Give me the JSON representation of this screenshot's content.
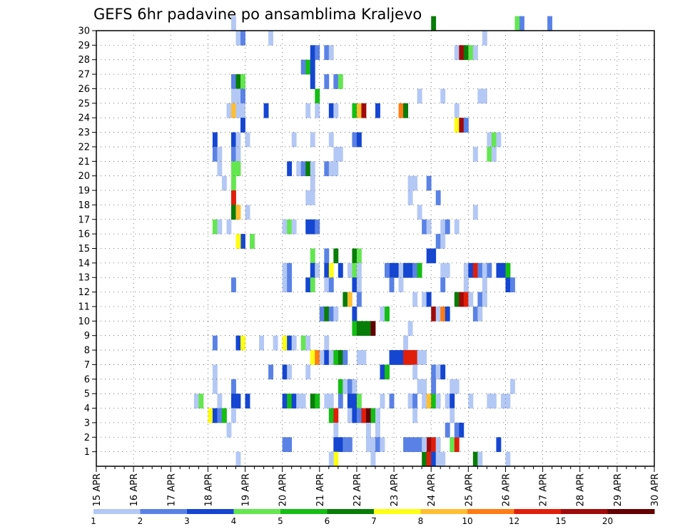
{
  "chart_data": {
    "type": "heatmap",
    "title": "GEFS 6hr padavine po ansamblima Kraljevo",
    "xlabel": "",
    "ylabel": "",
    "x_ticks": [
      "15 APR",
      "16 APR",
      "17 APR",
      "18 APR",
      "19 APR",
      "20 APR",
      "21 APR",
      "22 APR",
      "23 APR",
      "24 APR",
      "25 APR",
      "26 APR",
      "27 APR",
      "28 APR",
      "29 APR",
      "30 APR"
    ],
    "y_ticks": [
      "1",
      "2",
      "3",
      "4",
      "5",
      "6",
      "7",
      "8",
      "9",
      "10",
      "11",
      "12",
      "13",
      "14",
      "15",
      "16",
      "17",
      "18",
      "19",
      "20",
      "21",
      "22",
      "23",
      "24",
      "25",
      "26",
      "27",
      "28",
      "29",
      "30"
    ],
    "xlim": [
      0,
      60
    ],
    "ylim": [
      0,
      30
    ],
    "x_unit": "6-hour step from 15 APR 00Z",
    "y_unit": "ensemble member",
    "grid": true,
    "legend": {
      "placement": "bottom",
      "labels": [
        "1",
        "2",
        "3",
        "4",
        "5",
        "6",
        "7",
        "8",
        "10",
        "12",
        "15",
        "20"
      ],
      "colors": [
        "#b4c8f5",
        "#5a82e6",
        "#1446d2",
        "#64e650",
        "#14be14",
        "#087d08",
        "#ffff14",
        "#ffbe32",
        "#ff7d14",
        "#e11e0a",
        "#a00a0a",
        "#640000"
      ]
    },
    "cells": [
      [
        14.5,
        30,
        1
      ],
      [
        15,
        29,
        1
      ],
      [
        15.5,
        29,
        2
      ],
      [
        18.5,
        29,
        1
      ],
      [
        36,
        30,
        6
      ],
      [
        45,
        30,
        4
      ],
      [
        45.5,
        30,
        2
      ],
      [
        48.5,
        30,
        2
      ],
      [
        14.5,
        26,
        2
      ],
      [
        15,
        26,
        6
      ],
      [
        15.5,
        26,
        4
      ],
      [
        14.5,
        25,
        1
      ],
      [
        15,
        25,
        1
      ],
      [
        15.5,
        25,
        2
      ],
      [
        14,
        24,
        1
      ],
      [
        14.5,
        24,
        8
      ],
      [
        15,
        24,
        1
      ],
      [
        15.5,
        24,
        1
      ],
      [
        18,
        24,
        3
      ],
      [
        15.5,
        23,
        3
      ],
      [
        12.5,
        22,
        3
      ],
      [
        14.5,
        22,
        3
      ],
      [
        15,
        22,
        1
      ],
      [
        16,
        22,
        1
      ],
      [
        12.5,
        21,
        2
      ],
      [
        13,
        21,
        1
      ],
      [
        14.5,
        21,
        2
      ],
      [
        15,
        21,
        1
      ],
      [
        13,
        20,
        1
      ],
      [
        14.5,
        20,
        4
      ],
      [
        15,
        20,
        4
      ],
      [
        13.5,
        19,
        1
      ],
      [
        14.5,
        19,
        4
      ],
      [
        14.5,
        18,
        10
      ],
      [
        14.5,
        17,
        6
      ],
      [
        15,
        17,
        8
      ],
      [
        16,
        17,
        1
      ],
      [
        12.5,
        16,
        4
      ],
      [
        13,
        16,
        1
      ],
      [
        14,
        16,
        1
      ],
      [
        15.5,
        15,
        3
      ],
      [
        15,
        15,
        7
      ],
      [
        16.5,
        15,
        4
      ],
      [
        14.5,
        12,
        2
      ],
      [
        12.5,
        8,
        2
      ],
      [
        12.5,
        6,
        1
      ],
      [
        12.5,
        5,
        1
      ],
      [
        14.5,
        5,
        2
      ],
      [
        10.5,
        4,
        1
      ],
      [
        11,
        4,
        4
      ],
      [
        13,
        4,
        1
      ],
      [
        14.5,
        4,
        3
      ],
      [
        15,
        4,
        3
      ],
      [
        16,
        4,
        3
      ],
      [
        12,
        3,
        7
      ],
      [
        12.5,
        3,
        3
      ],
      [
        13,
        3,
        2
      ],
      [
        13.5,
        3,
        5
      ],
      [
        14.5,
        3,
        1
      ],
      [
        14,
        2,
        1
      ],
      [
        15,
        0,
        1
      ],
      [
        19,
        8,
        1
      ],
      [
        17.5,
        8,
        1
      ],
      [
        15,
        8,
        3
      ],
      [
        15.5,
        8,
        7
      ],
      [
        22,
        27,
        2
      ],
      [
        22.5,
        27,
        5
      ],
      [
        23,
        27,
        3
      ],
      [
        23,
        28,
        3
      ],
      [
        23.5,
        28,
        2
      ],
      [
        23,
        26,
        3
      ],
      [
        24.5,
        28,
        2
      ],
      [
        25,
        28,
        1
      ],
      [
        24.5,
        26,
        2
      ],
      [
        25.5,
        26,
        2
      ],
      [
        26,
        26,
        4
      ],
      [
        23.5,
        25,
        5
      ],
      [
        22.5,
        24,
        1
      ],
      [
        23.5,
        24,
        1
      ],
      [
        25,
        24,
        3
      ],
      [
        25.5,
        24,
        1
      ],
      [
        27.5,
        24,
        5
      ],
      [
        28,
        24,
        8
      ],
      [
        28.5,
        24,
        11
      ],
      [
        30,
        24,
        3
      ],
      [
        32.5,
        24,
        9
      ],
      [
        33,
        24,
        6
      ],
      [
        34.5,
        25,
        1
      ],
      [
        37,
        25,
        1
      ],
      [
        21,
        22,
        1
      ],
      [
        23,
        22,
        1
      ],
      [
        25,
        22,
        1
      ],
      [
        27.5,
        22,
        2
      ],
      [
        28,
        22,
        3
      ],
      [
        25.5,
        21,
        1
      ],
      [
        26,
        21,
        1
      ],
      [
        25.5,
        20,
        1
      ],
      [
        20.5,
        20,
        3
      ],
      [
        21.5,
        20,
        1
      ],
      [
        22,
        20,
        2
      ],
      [
        22.5,
        20,
        6
      ],
      [
        23,
        20,
        1
      ],
      [
        24.5,
        20,
        2
      ],
      [
        25,
        20,
        1
      ],
      [
        23,
        19,
        1
      ],
      [
        23,
        18,
        1
      ],
      [
        22.5,
        18,
        1
      ],
      [
        20,
        16,
        1
      ],
      [
        20.5,
        16,
        4
      ],
      [
        21,
        16,
        1
      ],
      [
        22.5,
        16,
        3
      ],
      [
        23,
        16,
        3
      ],
      [
        23.5,
        16,
        2
      ],
      [
        23,
        14,
        4
      ],
      [
        24.5,
        14,
        2
      ],
      [
        25.5,
        14,
        6
      ],
      [
        27.5,
        14,
        6
      ],
      [
        28,
        14,
        4
      ],
      [
        20,
        13,
        1
      ],
      [
        20.5,
        13,
        2
      ],
      [
        23,
        13,
        3
      ],
      [
        23.5,
        13,
        1
      ],
      [
        24.5,
        13,
        3
      ],
      [
        25,
        13,
        7
      ],
      [
        26,
        13,
        3
      ],
      [
        27,
        13,
        1
      ],
      [
        27.5,
        13,
        4
      ],
      [
        28,
        13,
        1
      ],
      [
        20,
        12,
        1
      ],
      [
        20.5,
        12,
        2
      ],
      [
        22.5,
        12,
        3
      ],
      [
        23,
        12,
        4
      ],
      [
        24.5,
        12,
        1
      ],
      [
        25,
        12,
        2
      ],
      [
        27.5,
        12,
        3
      ],
      [
        28,
        12,
        1
      ],
      [
        26.5,
        11,
        6
      ],
      [
        27,
        11,
        8
      ],
      [
        28,
        11,
        2
      ],
      [
        27.5,
        10,
        3
      ],
      [
        24,
        10,
        2
      ],
      [
        24.5,
        10,
        6
      ],
      [
        25,
        10,
        2
      ],
      [
        25.5,
        10,
        1
      ],
      [
        27.5,
        9,
        5
      ],
      [
        28,
        9,
        6
      ],
      [
        28.5,
        9,
        6
      ],
      [
        29,
        9,
        6
      ],
      [
        29.5,
        9,
        12
      ],
      [
        20,
        8,
        7
      ],
      [
        20.5,
        8,
        3
      ],
      [
        21,
        8,
        1
      ],
      [
        22,
        8,
        4
      ],
      [
        22.5,
        8,
        1
      ],
      [
        24.5,
        8,
        1
      ],
      [
        23,
        7,
        7
      ],
      [
        23.5,
        7,
        9
      ],
      [
        24,
        7,
        1
      ],
      [
        24.5,
        7,
        3
      ],
      [
        25,
        7,
        1
      ],
      [
        25.5,
        7,
        5
      ],
      [
        26,
        7,
        6
      ],
      [
        26.5,
        7,
        2
      ],
      [
        28,
        7,
        1
      ],
      [
        28.5,
        7,
        1
      ],
      [
        20,
        6,
        3
      ],
      [
        20.5,
        6,
        1
      ],
      [
        22.5,
        6,
        1
      ],
      [
        18.5,
        6,
        2
      ],
      [
        26,
        5,
        5
      ],
      [
        26.5,
        5,
        1
      ],
      [
        27,
        5,
        2
      ],
      [
        27.5,
        5,
        1
      ],
      [
        20,
        4,
        3
      ],
      [
        20.5,
        4,
        5
      ],
      [
        21,
        4,
        3
      ],
      [
        21.5,
        4,
        1
      ],
      [
        22,
        4,
        1
      ],
      [
        23,
        4,
        6
      ],
      [
        23.5,
        4,
        5
      ],
      [
        24.5,
        4,
        1
      ],
      [
        25,
        4,
        1
      ],
      [
        26,
        4,
        2
      ],
      [
        27,
        4,
        3
      ],
      [
        27.5,
        4,
        3
      ],
      [
        28,
        4,
        4
      ],
      [
        25,
        3,
        5
      ],
      [
        25.5,
        3,
        10
      ],
      [
        27,
        3,
        1
      ],
      [
        27.5,
        3,
        3
      ],
      [
        28,
        3,
        2
      ],
      [
        28.5,
        3,
        10
      ],
      [
        29,
        3,
        12
      ],
      [
        29.5,
        3,
        5
      ],
      [
        30,
        3,
        1
      ],
      [
        25.5,
        2,
        1
      ],
      [
        20,
        1,
        2
      ],
      [
        20.5,
        1,
        2
      ],
      [
        25.5,
        1,
        3
      ],
      [
        26,
        1,
        3
      ],
      [
        26.5,
        1,
        2
      ],
      [
        27,
        1,
        2
      ],
      [
        25.5,
        0,
        7
      ],
      [
        25,
        0,
        1
      ],
      [
        29,
        2,
        1
      ],
      [
        30,
        2,
        1
      ],
      [
        29,
        1,
        1
      ],
      [
        29.5,
        1,
        1
      ],
      [
        30,
        1,
        2
      ],
      [
        30.5,
        1,
        1
      ],
      [
        29.5,
        0,
        1
      ],
      [
        31.5,
        13,
        3
      ],
      [
        32,
        13,
        3
      ],
      [
        32.5,
        13,
        1
      ],
      [
        31,
        13,
        2
      ],
      [
        31.5,
        12,
        2
      ],
      [
        32.5,
        12,
        1
      ],
      [
        30.5,
        10,
        1
      ],
      [
        31,
        10,
        5
      ],
      [
        33,
        8,
        1
      ],
      [
        31.5,
        7,
        3
      ],
      [
        32,
        7,
        3
      ],
      [
        32.5,
        7,
        3
      ],
      [
        33,
        7,
        10
      ],
      [
        33.5,
        7,
        10
      ],
      [
        34,
        7,
        10
      ],
      [
        34.5,
        7,
        1
      ],
      [
        35,
        7,
        1
      ],
      [
        30.5,
        6,
        3
      ],
      [
        31,
        6,
        5
      ],
      [
        30.5,
        4,
        1
      ],
      [
        31.5,
        4,
        2
      ],
      [
        33.5,
        4,
        1
      ],
      [
        34,
        4,
        2
      ],
      [
        35,
        4,
        1
      ],
      [
        35.5,
        4,
        8
      ],
      [
        36,
        4,
        5
      ],
      [
        34.5,
        5,
        1
      ],
      [
        35,
        5,
        1
      ],
      [
        34,
        3,
        1
      ],
      [
        33,
        1,
        2
      ],
      [
        33.5,
        1,
        2
      ],
      [
        34,
        1,
        2
      ],
      [
        34.5,
        1,
        2
      ],
      [
        35,
        1,
        2
      ],
      [
        35.5,
        1,
        11
      ],
      [
        36,
        1,
        10
      ],
      [
        36.5,
        1,
        1
      ],
      [
        35,
        0,
        6
      ],
      [
        35.5,
        0,
        10
      ],
      [
        36,
        0,
        3
      ],
      [
        36.5,
        0,
        1
      ],
      [
        38,
        1,
        4
      ],
      [
        38.5,
        1,
        10
      ],
      [
        37,
        0,
        1
      ],
      [
        35,
        1,
        1
      ],
      [
        33.5,
        19,
        1
      ],
      [
        34,
        19,
        1
      ],
      [
        35.5,
        19,
        2
      ],
      [
        33.5,
        18,
        1
      ],
      [
        36.5,
        18,
        2
      ],
      [
        34.5,
        17,
        1
      ],
      [
        35,
        16,
        2
      ],
      [
        35.5,
        16,
        1
      ],
      [
        37,
        16,
        1
      ],
      [
        37.5,
        16,
        2
      ],
      [
        38.5,
        16,
        1
      ],
      [
        36.5,
        15,
        2
      ],
      [
        37,
        15,
        1
      ],
      [
        35.5,
        14,
        3
      ],
      [
        36,
        14,
        3
      ],
      [
        33,
        13,
        3
      ],
      [
        33.5,
        13,
        3
      ],
      [
        34,
        13,
        2
      ],
      [
        34.5,
        13,
        5
      ],
      [
        37,
        13,
        1
      ],
      [
        37.5,
        13,
        1
      ],
      [
        39.5,
        13,
        1
      ],
      [
        40,
        13,
        3
      ],
      [
        40.5,
        13,
        10
      ],
      [
        41,
        13,
        2
      ],
      [
        41.5,
        13,
        1
      ],
      [
        42,
        13,
        2
      ],
      [
        43,
        13,
        3
      ],
      [
        43.5,
        13,
        3
      ],
      [
        44,
        13,
        5
      ],
      [
        37,
        12,
        2
      ],
      [
        39.5,
        12,
        1
      ],
      [
        41.5,
        12,
        1
      ],
      [
        44,
        12,
        3
      ],
      [
        44.5,
        12,
        2
      ],
      [
        34,
        11,
        1
      ],
      [
        35,
        11,
        1
      ],
      [
        35.5,
        11,
        3
      ],
      [
        38.5,
        11,
        6
      ],
      [
        39,
        11,
        11
      ],
      [
        39.5,
        11,
        10
      ],
      [
        40,
        11,
        1
      ],
      [
        41,
        11,
        2
      ],
      [
        41.5,
        11,
        1
      ],
      [
        36,
        10,
        11
      ],
      [
        36.5,
        10,
        1
      ],
      [
        37,
        10,
        9
      ],
      [
        37.5,
        10,
        3
      ],
      [
        40.5,
        10,
        2
      ],
      [
        41,
        10,
        1
      ],
      [
        33.5,
        9,
        1
      ],
      [
        34,
        6,
        1
      ],
      [
        36,
        6,
        2
      ],
      [
        36.5,
        6,
        1
      ],
      [
        37,
        6,
        3
      ],
      [
        36,
        5,
        2
      ],
      [
        38,
        5,
        1
      ],
      [
        38.5,
        5,
        1
      ],
      [
        36.5,
        4,
        1
      ],
      [
        37.5,
        4,
        1
      ],
      [
        38,
        4,
        3
      ],
      [
        40,
        4,
        1
      ],
      [
        42,
        4,
        1
      ],
      [
        42.5,
        4,
        1
      ],
      [
        43.5,
        4,
        1
      ],
      [
        44,
        4,
        1
      ],
      [
        44.5,
        5,
        1
      ],
      [
        38,
        3,
        1
      ],
      [
        38.5,
        2,
        2
      ],
      [
        39,
        2,
        3
      ],
      [
        43,
        1,
        3
      ],
      [
        40.5,
        0,
        6
      ],
      [
        41,
        0,
        1
      ],
      [
        44,
        0,
        1
      ],
      [
        37.5,
        2,
        2
      ],
      [
        38.5,
        28,
        1
      ],
      [
        39,
        28,
        11
      ],
      [
        39.5,
        28,
        6
      ],
      [
        40,
        28,
        4
      ],
      [
        40.5,
        28,
        1
      ],
      [
        41.5,
        29,
        1
      ],
      [
        38.5,
        24,
        1
      ],
      [
        41,
        25,
        1
      ],
      [
        41.5,
        25,
        1
      ],
      [
        38.5,
        23,
        7
      ],
      [
        39,
        23,
        11
      ],
      [
        39.5,
        23,
        2
      ],
      [
        42,
        22,
        1
      ],
      [
        42.5,
        22,
        4
      ],
      [
        43,
        22,
        1
      ],
      [
        40.5,
        21,
        1
      ],
      [
        42,
        21,
        4
      ],
      [
        42.5,
        21,
        1
      ],
      [
        40.5,
        17,
        1
      ]
    ]
  }
}
